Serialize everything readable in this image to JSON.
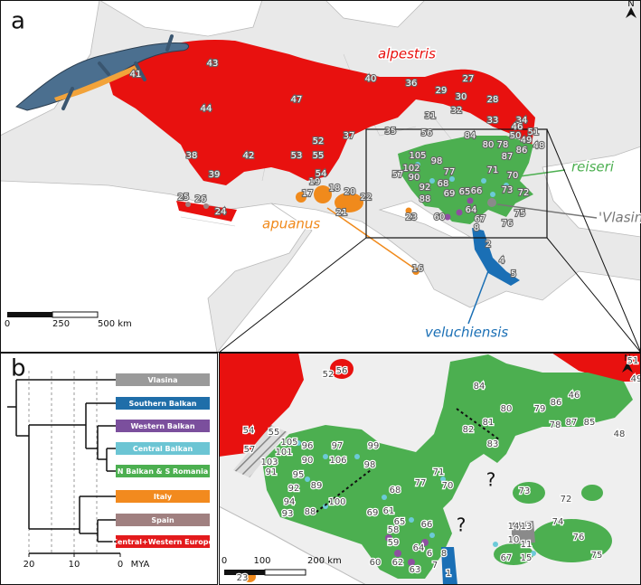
{
  "panel_labels": [
    "a",
    "b"
  ],
  "north": "N",
  "map": {
    "taxa": [
      {
        "label": "alpestris",
        "color": "#e8110f"
      },
      {
        "label": "reiseri",
        "color": "#4caf50"
      },
      {
        "label": "apuanus",
        "color": "#f08a1c"
      },
      {
        "label": "veluchiensis",
        "color": "#1a6fb5"
      },
      {
        "label": "'Vlasina'",
        "color": "#777777"
      }
    ],
    "localities": [
      "43",
      "41",
      "44",
      "47",
      "40",
      "36",
      "27",
      "29",
      "30",
      "28",
      "32",
      "31",
      "33",
      "34",
      "35",
      "56",
      "37",
      "52",
      "51",
      "50",
      "49",
      "48",
      "46",
      "84",
      "80",
      "78",
      "86",
      "87",
      "105",
      "98",
      "38",
      "42",
      "53",
      "55",
      "39",
      "54",
      "102",
      "57",
      "90",
      "77",
      "92",
      "88",
      "68",
      "69",
      "65",
      "66",
      "71",
      "70",
      "73",
      "72",
      "19",
      "17",
      "18",
      "20",
      "22",
      "21",
      "25",
      "26",
      "24",
      "23",
      "60",
      "64",
      "67",
      "75",
      "76",
      "8",
      "2",
      "4",
      "5",
      "16"
    ],
    "scale": [
      "0",
      "250",
      "500 km"
    ]
  },
  "inset": {
    "localities": [
      "52",
      "56",
      "54",
      "57",
      "55",
      "105",
      "101",
      "103",
      "91",
      "96",
      "97",
      "99",
      "90",
      "106",
      "98",
      "95",
      "89",
      "92",
      "94",
      "93",
      "100",
      "88",
      "68",
      "61",
      "69",
      "77",
      "65",
      "66",
      "58",
      "59",
      "64",
      "60",
      "62",
      "63",
      "6",
      "8",
      "7",
      "1",
      "71",
      "70",
      "84",
      "80",
      "79",
      "86",
      "46",
      "51",
      "49",
      "78",
      "87",
      "85",
      "48",
      "82",
      "81",
      "83",
      "73",
      "72",
      "14",
      "13",
      "10",
      "11",
      "67",
      "15",
      "74",
      "76",
      "75",
      "23"
    ],
    "unknown": [
      "?",
      "?"
    ],
    "scale": [
      "0",
      "100",
      "200 km"
    ]
  },
  "tree": {
    "clades": [
      {
        "label": "Vlasina",
        "color": "#9a9a9a"
      },
      {
        "label": "Southern Balkan",
        "color": "#1f6ea9"
      },
      {
        "label": "Western Balkan",
        "color": "#7b4f9d"
      },
      {
        "label": "Central Balkan",
        "color": "#6cc5d4"
      },
      {
        "label": "N Balkan & S Romania",
        "color": "#4caf50"
      },
      {
        "label": "Italy",
        "color": "#f28a1e"
      },
      {
        "label": "Spain",
        "color": "#a08080"
      },
      {
        "label": "Central+Western Europe",
        "color": "#e31a1c"
      }
    ],
    "axis": [
      "20",
      "10",
      "0"
    ],
    "axis_label": "MYA"
  }
}
